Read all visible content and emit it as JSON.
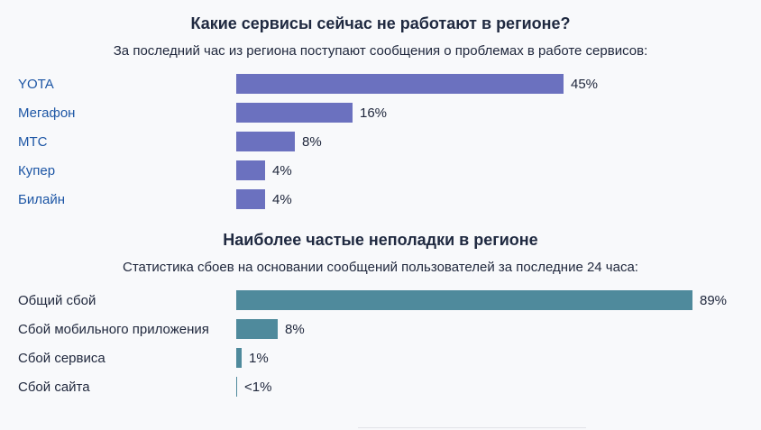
{
  "page": {
    "background": "#f8f9fb",
    "text_color": "#20283d",
    "link_color": "#1d56a5"
  },
  "chart_data": [
    {
      "type": "bar",
      "orientation": "horizontal",
      "title": "Какие сервисы сейчас не работают в регионе?",
      "subtitle": "За последний час из региона поступают сообщения о проблемах в работе сервисов:",
      "categories": [
        "YOTA",
        "Мегафон",
        "МТС",
        "Купер",
        "Билайн"
      ],
      "values": [
        45,
        16,
        8,
        4,
        4
      ],
      "value_labels": [
        "45%",
        "16%",
        "8%",
        "4%",
        "4%"
      ],
      "bar_color": "#6b71bf",
      "labels_are_links": true,
      "xlim": [
        0,
        100
      ],
      "grid": false,
      "legend": false,
      "xlabel": "",
      "ylabel": ""
    },
    {
      "type": "bar",
      "orientation": "horizontal",
      "title": "Наиболее частые неполадки в регионе",
      "subtitle": "Статистика сбоев на основании сообщений пользователей за последние 24 часа:",
      "categories": [
        "Общий сбой",
        "Сбой мобильного приложения",
        "Сбой сервиса",
        "Сбой сайта"
      ],
      "values": [
        89,
        8,
        1,
        0.2
      ],
      "value_labels": [
        "89%",
        "8%",
        "1%",
        "<1%"
      ],
      "bar_color": "#4f8a9c",
      "labels_are_links": false,
      "xlim": [
        0,
        100
      ],
      "grid": false,
      "legend": false,
      "xlabel": "",
      "ylabel": ""
    }
  ]
}
